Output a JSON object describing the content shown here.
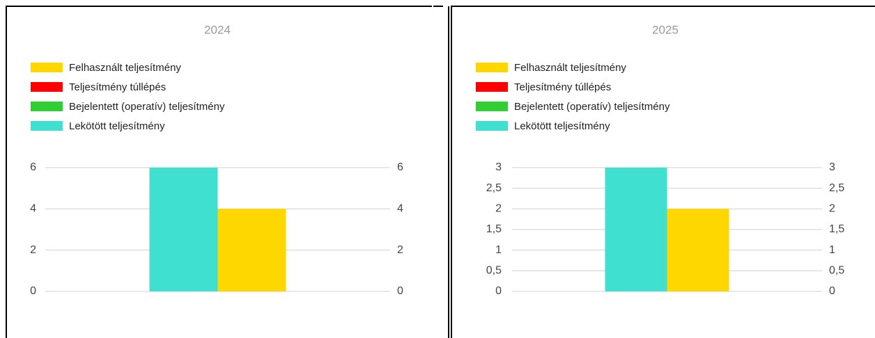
{
  "chart_data": [
    {
      "type": "bar",
      "title": "2024",
      "categories": [
        null
      ],
      "series": [
        {
          "name": "Felhasznált teljesítmény",
          "color": "#ffd700",
          "values": [
            4
          ]
        },
        {
          "name": "Teljesítmény túllépés",
          "color": "#ff0000",
          "values": [
            null
          ]
        },
        {
          "name": "Bejelentett (operatív) teljesítmény",
          "color": "#32cd32",
          "values": [
            null
          ]
        },
        {
          "name": "Lekötött teljesítmény",
          "color": "#40e0d0",
          "values": [
            6
          ]
        }
      ],
      "ylim": [
        0,
        6
      ],
      "yticks": [
        0,
        2,
        4,
        6
      ],
      "y2lim": [
        0,
        6
      ],
      "y2ticks": [
        0,
        2,
        4,
        6
      ],
      "grid": true,
      "legend": "top"
    },
    {
      "type": "bar",
      "title": "2025",
      "categories": [
        null
      ],
      "series": [
        {
          "name": "Felhasznált teljesítmény",
          "color": "#ffd700",
          "values": [
            2
          ]
        },
        {
          "name": "Teljesítmény túllépés",
          "color": "#ff0000",
          "values": [
            null
          ]
        },
        {
          "name": "Bejelentett (operatív) teljesítmény",
          "color": "#32cd32",
          "values": [
            null
          ]
        },
        {
          "name": "Lekötött teljesítmény",
          "color": "#40e0d0",
          "values": [
            3
          ]
        }
      ],
      "ylim": [
        0,
        3
      ],
      "yticks": [
        0,
        {
          "value": 0.5,
          "label": "0,5"
        },
        1,
        {
          "value": 1.5,
          "label": "1,5"
        },
        2,
        {
          "value": 2.5,
          "label": "2,5"
        },
        3
      ],
      "y2lim": [
        0,
        3
      ],
      "y2ticks": [
        0,
        {
          "value": 0.5,
          "label": "0,5"
        },
        1,
        {
          "value": 1.5,
          "label": "1,5"
        },
        2,
        {
          "value": 2.5,
          "label": "2,5"
        },
        3
      ],
      "grid": true,
      "legend": "top"
    }
  ]
}
